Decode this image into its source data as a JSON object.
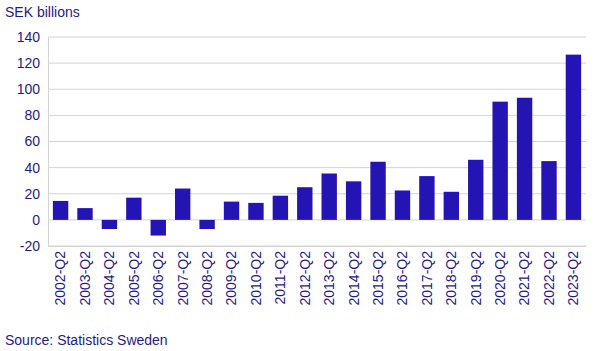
{
  "chart_data": {
    "type": "bar",
    "y_label": "SEK billions",
    "source": "Source: Statistics Sweden",
    "categories": [
      "2002-Q2",
      "2003-Q2",
      "2004-Q2",
      "2005-Q2",
      "2006-Q2",
      "2007-Q2",
      "2008-Q2",
      "2009-Q2",
      "2010-Q2",
      "2011-Q2",
      "2012-Q2",
      "2013-Q2",
      "2014-Q2",
      "2015-Q2",
      "2016-Q2",
      "2017-Q2",
      "2018-Q2",
      "2019-Q2",
      "2020-Q2",
      "2021-Q2",
      "2022-Q2",
      "2023-Q2"
    ],
    "values": [
      14.5,
      9,
      -7,
      17,
      -12,
      24,
      -7,
      14,
      13,
      18.5,
      25,
      35.5,
      29.5,
      44.5,
      22.5,
      33.5,
      21.5,
      46,
      90.5,
      93.5,
      45,
      126.5
    ],
    "color": "#2414b4",
    "ylim": [
      -20,
      140
    ],
    "yticks": [
      -20,
      0,
      20,
      40,
      60,
      80,
      100,
      120,
      140
    ],
    "grid": true
  }
}
